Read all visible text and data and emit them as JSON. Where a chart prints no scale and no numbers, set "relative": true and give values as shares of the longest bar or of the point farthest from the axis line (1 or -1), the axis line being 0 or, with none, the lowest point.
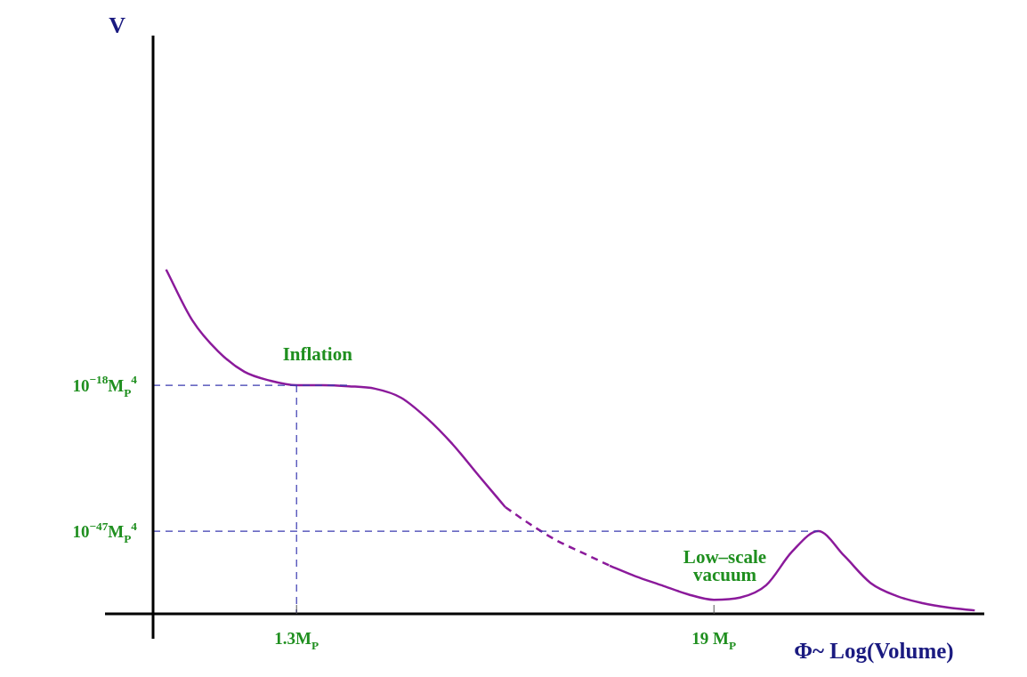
{
  "chart_data": {
    "type": "line",
    "relative": true,
    "xlabel": "Φ~ Log(Volume)",
    "categories": [
      null,
      null,
      null,
      null,
      null,
      "1.3M$_{P}$",
      null,
      null,
      null,
      null,
      null,
      null,
      null,
      null,
      null,
      null,
      null,
      null,
      null,
      null,
      null,
      "19 M$_{P}$",
      null,
      null,
      null,
      null,
      null,
      null,
      null,
      null,
      null,
      null
    ],
    "series": [
      {
        "color": "#8b1a9b",
        "line_style": "solid",
        "values": [
          1,
          0.853,
          0.762,
          0.703,
          0.677,
          0.664,
          0.664,
          0.661,
          0.654,
          0.628,
          0.568,
          0.491,
          0.4,
          0.31,
          null,
          null,
          null,
          null,
          null,
          null,
          null,
          null,
          null,
          null,
          null,
          null,
          null,
          null,
          null,
          null,
          null,
          null
        ]
      },
      {
        "color": "#8b1a9b",
        "line_style": "dashed",
        "values": [
          null,
          null,
          null,
          null,
          null,
          null,
          null,
          null,
          null,
          null,
          null,
          null,
          null,
          0.31,
          0.258,
          0.212,
          0.176,
          0.14,
          null,
          null,
          null,
          null,
          null,
          null,
          null,
          null,
          null,
          null,
          null,
          null,
          null,
          null
        ]
      },
      {
        "color": "#8b1a9b",
        "line_style": "solid",
        "values": [
          null,
          null,
          null,
          null,
          null,
          null,
          null,
          null,
          null,
          null,
          null,
          null,
          null,
          null,
          null,
          null,
          null,
          0.14,
          0.109,
          0.083,
          0.057,
          0.041,
          0.047,
          0.083,
          0.181,
          0.24,
          0.168,
          0.09,
          0.052,
          0.031,
          0.018,
          0.01
        ]
      }
    ],
    "ref_lines": [
      {
        "axis": "y",
        "value": 0.664,
        "label": "10$^{−18}$M$_{P}$$^{4}$",
        "color": "#3a3ab0",
        "line_style": "dashed"
      },
      {
        "axis": "y",
        "value": 0.24,
        "label": "10$^{−47}$M$_{P}$$^{4}$",
        "color": "#3a3ab0",
        "line_style": "dashed"
      },
      {
        "axis": "x",
        "value": "1.3M$_{P}$",
        "color": "#3a3ab0",
        "line_style": "dashed"
      }
    ],
    "annotations": [
      "Inflation",
      "Low–scale\nvacuum",
      "V"
    ],
    "legend": false
  }
}
